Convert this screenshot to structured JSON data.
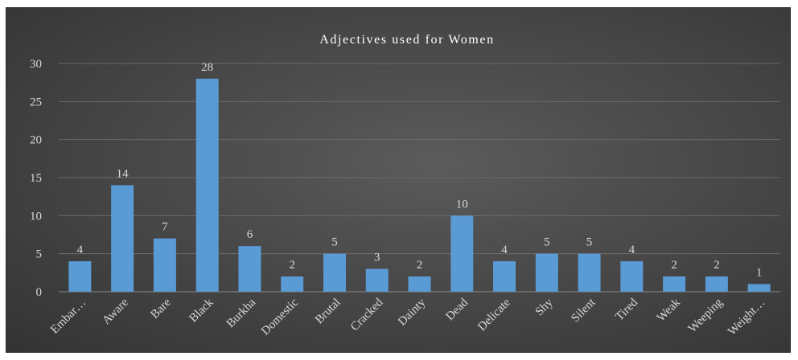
{
  "chart_data": {
    "type": "bar",
    "title": "Adjectives used for Women",
    "xlabel": "",
    "ylabel": "",
    "ylim": [
      0,
      30
    ],
    "yticks": [
      0,
      5,
      10,
      15,
      20,
      25,
      30
    ],
    "grid": true,
    "legend": "none",
    "bar_color": "#5b9bd5",
    "categories": [
      "Embar…",
      "Aware",
      "Bare",
      "Black",
      "Burkha",
      "Domestic",
      "Brutal",
      "Cracked",
      "Dainty",
      "Dead",
      "Delicate",
      "Shy",
      "Silent",
      "Tired",
      "Weak",
      "Weeping",
      "Weight…"
    ],
    "values": [
      4,
      14,
      7,
      28,
      6,
      2,
      5,
      3,
      2,
      10,
      4,
      5,
      5,
      4,
      2,
      2,
      1
    ]
  }
}
